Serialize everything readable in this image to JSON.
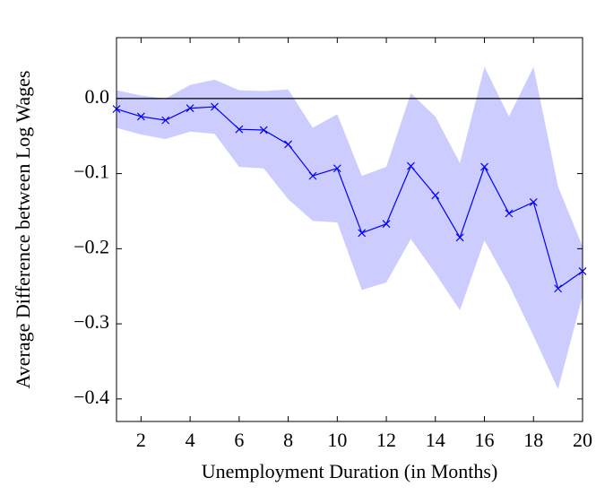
{
  "chart_data": {
    "type": "line",
    "xlabel": "Unemployment Duration (in Months)",
    "ylabel": "Average Difference between Log Wages",
    "x": [
      1,
      2,
      3,
      4,
      5,
      6,
      7,
      8,
      9,
      10,
      11,
      12,
      13,
      14,
      15,
      16,
      17,
      18,
      19,
      20
    ],
    "values": [
      -0.014,
      -0.024,
      -0.029,
      -0.013,
      -0.011,
      -0.041,
      -0.042,
      -0.061,
      -0.103,
      -0.093,
      -0.179,
      -0.167,
      -0.09,
      -0.129,
      -0.185,
      -0.091,
      -0.153,
      -0.138,
      -0.253,
      -0.23
    ],
    "upper": [
      0.011,
      0.004,
      0.0,
      0.018,
      0.025,
      0.011,
      0.01,
      0.012,
      -0.039,
      -0.021,
      -0.103,
      -0.091,
      0.007,
      -0.024,
      -0.086,
      0.042,
      -0.024,
      0.042,
      -0.117,
      -0.197
    ],
    "lower": [
      -0.039,
      -0.048,
      -0.054,
      -0.044,
      -0.047,
      -0.091,
      -0.093,
      -0.134,
      -0.163,
      -0.165,
      -0.255,
      -0.245,
      -0.187,
      -0.233,
      -0.282,
      -0.189,
      -0.248,
      -0.316,
      -0.387,
      -0.263
    ],
    "color": "#0000ff",
    "band_color": "#ccccff",
    "hline": 0,
    "xlim": [
      1,
      20
    ],
    "ylim": [
      -0.43,
      0.081
    ],
    "xticks": [
      2,
      4,
      6,
      8,
      10,
      12,
      14,
      16,
      18,
      20
    ],
    "yticks": [
      {
        "value": -0.4,
        "label": "−0.4"
      },
      {
        "value": -0.3,
        "label": "−0.3"
      },
      {
        "value": -0.2,
        "label": "−0.2"
      },
      {
        "value": -0.1,
        "label": "−0.1"
      },
      {
        "value": 0,
        "label": "0.0"
      }
    ]
  }
}
